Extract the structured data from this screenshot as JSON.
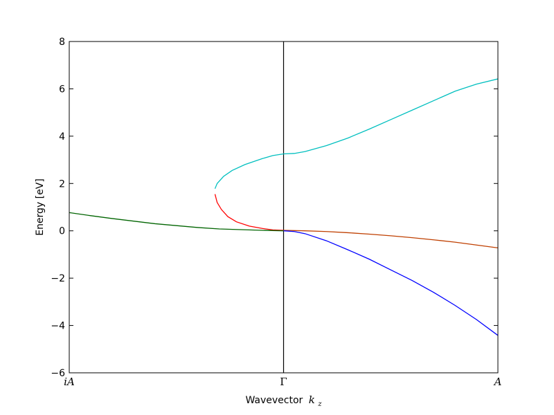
{
  "chart_data": {
    "type": "line",
    "xlabel": "Wavevector",
    "xlabel_math": "k",
    "xlabel_math_sub": "z",
    "ylabel": "Energy [eV]",
    "ylim": [
      -6,
      8
    ],
    "xlim": [
      -1,
      1
    ],
    "yticks": [
      -6,
      -4,
      -2,
      0,
      2,
      4,
      6,
      8
    ],
    "ytick_labels": [
      "−6",
      "−4",
      "−2",
      "0",
      "2",
      "4",
      "6",
      "8"
    ],
    "xticks": [
      {
        "value": -1,
        "label": "iA",
        "style": "math"
      },
      {
        "value": 0,
        "label": "Γ",
        "style": "upright"
      },
      {
        "value": 1,
        "label": "A",
        "style": "math"
      }
    ],
    "vline_x": 0,
    "series": [
      {
        "color": "#00bfbf",
        "points": [
          [
            -0.32,
            1.78
          ],
          [
            -0.31,
            2.0
          ],
          [
            -0.28,
            2.3
          ],
          [
            -0.24,
            2.55
          ],
          [
            -0.18,
            2.8
          ],
          [
            -0.1,
            3.05
          ],
          [
            -0.05,
            3.18
          ],
          [
            0,
            3.25
          ],
          [
            0.05,
            3.27
          ],
          [
            0.1,
            3.35
          ],
          [
            0.2,
            3.6
          ],
          [
            0.3,
            3.92
          ],
          [
            0.4,
            4.3
          ],
          [
            0.5,
            4.7
          ],
          [
            0.6,
            5.1
          ],
          [
            0.7,
            5.5
          ],
          [
            0.8,
            5.9
          ],
          [
            0.9,
            6.2
          ],
          [
            1.0,
            6.42
          ]
        ]
      },
      {
        "color": "#ff0000",
        "points": [
          [
            -0.32,
            1.55
          ],
          [
            -0.31,
            1.2
          ],
          [
            -0.29,
            0.9
          ],
          [
            -0.26,
            0.6
          ],
          [
            -0.22,
            0.38
          ],
          [
            -0.16,
            0.2
          ],
          [
            -0.1,
            0.1
          ],
          [
            -0.05,
            0.04
          ],
          [
            0,
            0.02
          ]
        ]
      },
      {
        "color": "#bf3f00",
        "points": [
          [
            0,
            0.02
          ],
          [
            0.1,
            0.0
          ],
          [
            0.2,
            -0.03
          ],
          [
            0.3,
            -0.08
          ],
          [
            0.4,
            -0.14
          ],
          [
            0.5,
            -0.21
          ],
          [
            0.6,
            -0.29
          ],
          [
            0.7,
            -0.38
          ],
          [
            0.8,
            -0.48
          ],
          [
            0.9,
            -0.6
          ],
          [
            1.0,
            -0.72
          ]
        ]
      },
      {
        "color": "#0000ff",
        "points": [
          [
            0,
            0.0
          ],
          [
            0.05,
            -0.03
          ],
          [
            0.1,
            -0.12
          ],
          [
            0.2,
            -0.42
          ],
          [
            0.3,
            -0.8
          ],
          [
            0.4,
            -1.2
          ],
          [
            0.5,
            -1.65
          ],
          [
            0.6,
            -2.1
          ],
          [
            0.7,
            -2.6
          ],
          [
            0.8,
            -3.15
          ],
          [
            0.9,
            -3.75
          ],
          [
            1.0,
            -4.42
          ]
        ]
      },
      {
        "color": "#006400",
        "points": [
          [
            -1,
            0.77
          ],
          [
            -0.9,
            0.64
          ],
          [
            -0.8,
            0.52
          ],
          [
            -0.7,
            0.41
          ],
          [
            -0.6,
            0.3
          ],
          [
            -0.5,
            0.22
          ],
          [
            -0.4,
            0.14
          ],
          [
            -0.3,
            0.08
          ],
          [
            -0.2,
            0.05
          ],
          [
            -0.1,
            0.02
          ],
          [
            0,
            0.0
          ]
        ]
      }
    ]
  }
}
